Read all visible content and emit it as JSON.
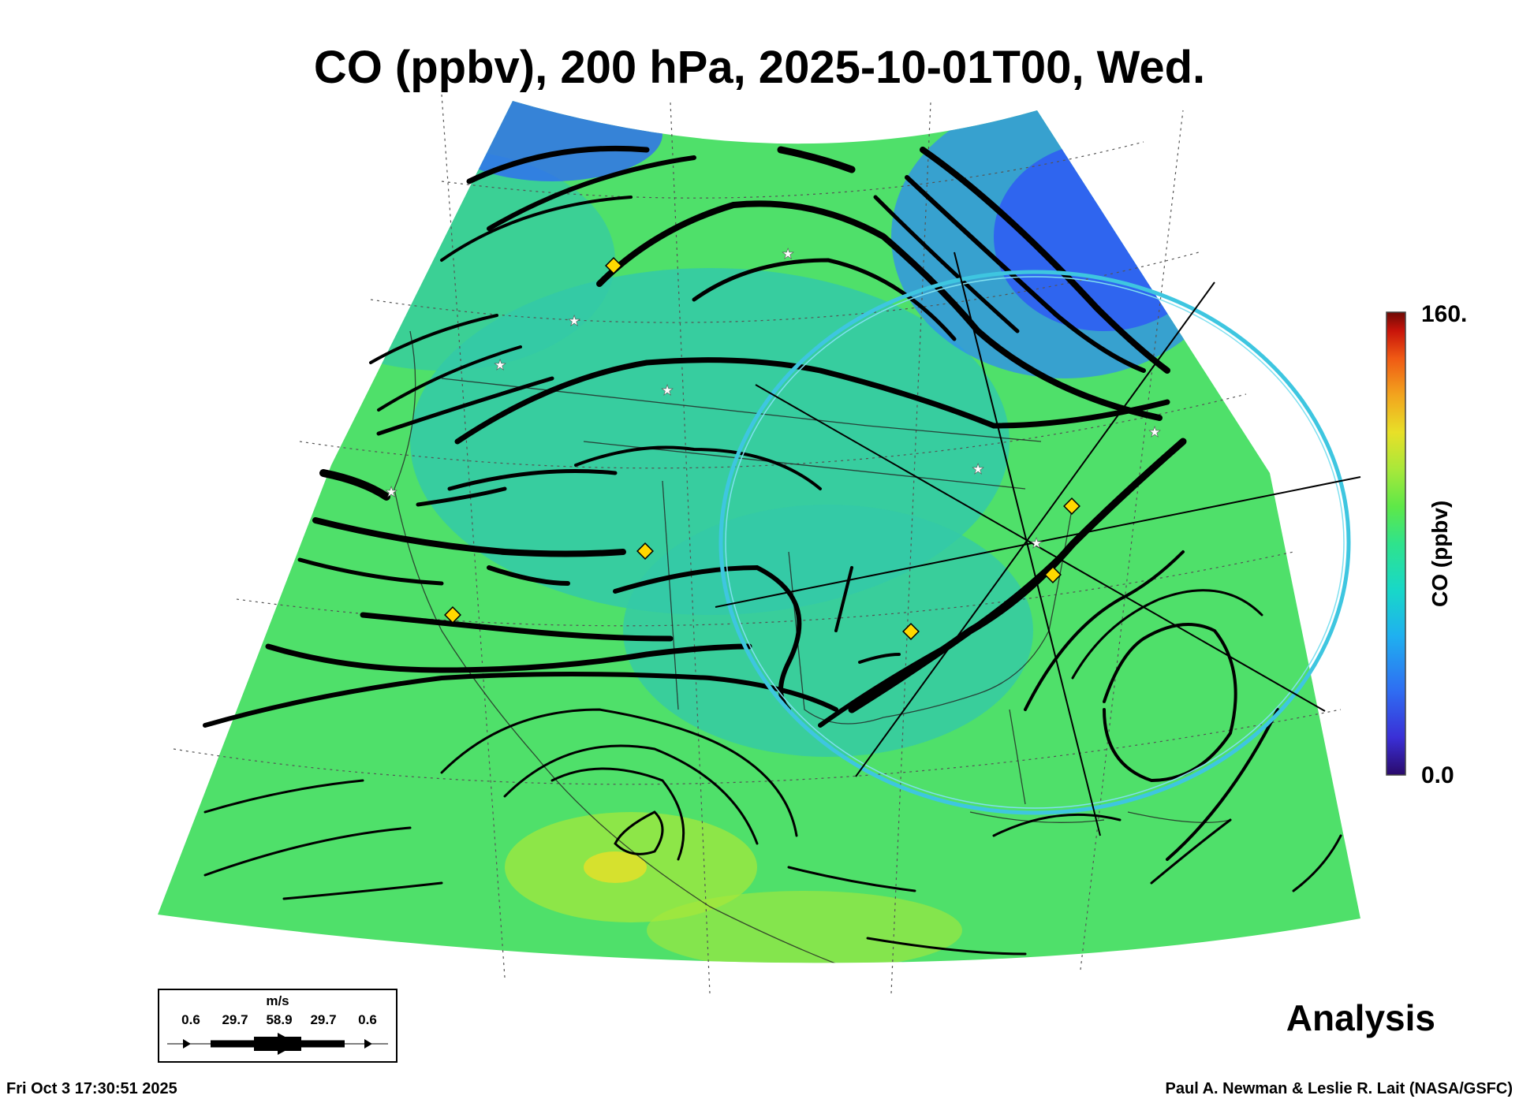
{
  "title": "CO (ppbv), 200 hPa, 2025-10-01T00, Wed.",
  "colorbar": {
    "max_label": "160.",
    "min_label": "0.0",
    "label": "CO (ppbv)",
    "colors": [
      "#2a0a6b",
      "#3a2fd6",
      "#2f6cf2",
      "#1fb0f0",
      "#18d8c8",
      "#2fe38c",
      "#5ee848",
      "#a8e83a",
      "#e8e028",
      "#f2a51e",
      "#f05a14",
      "#c8140a",
      "#6e0a06"
    ]
  },
  "legend": {
    "units": "m/s",
    "values": [
      "0.6",
      "29.7",
      "58.9",
      "29.7",
      "0.6"
    ]
  },
  "analysis_label": "Analysis",
  "footer": {
    "timestamp": "Fri Oct  3 17:30:51 2025",
    "credit": "Paul A. Newman & Leslie R. Lait (NASA/GSFC)"
  },
  "field_colors": {
    "background_green": "#4fe06a",
    "teal": "#33c9a8",
    "blue": "#2f5ef2",
    "ring": "#3ec6e0",
    "marker": "#ffd800"
  }
}
